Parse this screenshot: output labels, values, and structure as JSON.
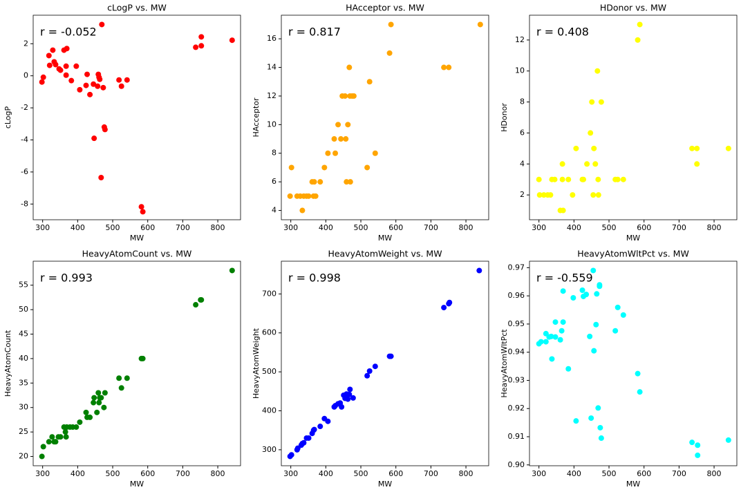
{
  "chart_data": [
    {
      "type": "scatter",
      "title": "cLogP vs. MW",
      "xlabel": "MW",
      "ylabel": "cLogP",
      "annotation": "r = -0.052",
      "color": "#ff0000",
      "xlim": [
        273,
        865
      ],
      "ylim": [
        -8.98,
        3.78
      ],
      "xticks": [
        300,
        400,
        500,
        600,
        700,
        800
      ],
      "yticks": [
        -8,
        -6,
        -4,
        -2,
        0,
        2
      ],
      "x": [
        298,
        302,
        318,
        320,
        329,
        333,
        337,
        347,
        351,
        361,
        369,
        367,
        367,
        382,
        396,
        406,
        424,
        427,
        435,
        445,
        447,
        457,
        459,
        463,
        461,
        467,
        469,
        473,
        476,
        478,
        518,
        525,
        541,
        582,
        586,
        737,
        753,
        753,
        841
      ],
      "y": [
        -0.39,
        -0.09,
        1.26,
        0.65,
        1.6,
        0.87,
        0.7,
        0.43,
        0.35,
        1.6,
        1.7,
        0.6,
        0.04,
        -0.3,
        0.6,
        -0.87,
        -0.6,
        0.09,
        -1.17,
        -0.52,
        -3.9,
        -0.65,
        0.09,
        -0.22,
        -0.09,
        -6.35,
        3.2,
        -0.74,
        -3.2,
        -3.35,
        -0.26,
        -0.65,
        -0.26,
        -8.17,
        -8.48,
        1.78,
        2.43,
        1.87,
        2.22
      ]
    },
    {
      "type": "scatter",
      "title": "HAcceptor vs. MW",
      "xlabel": "MW",
      "ylabel": "HAcceptor",
      "annotation": "r = 0.817",
      "color": "#ffa500",
      "xlim": [
        273,
        865
      ],
      "ylim": [
        3.35,
        17.65
      ],
      "xticks": [
        300,
        400,
        500,
        600,
        700,
        800
      ],
      "yticks": [
        4,
        6,
        8,
        10,
        12,
        14,
        16
      ],
      "x": [
        298,
        318,
        327,
        337,
        345,
        351,
        365,
        371,
        333,
        361,
        367,
        384,
        459,
        470,
        302,
        396,
        518,
        406,
        427,
        541,
        424,
        443,
        457,
        435,
        463,
        447,
        455,
        469,
        475,
        480,
        525,
        467,
        737,
        751,
        582,
        586,
        841
      ],
      "y": [
        5,
        5,
        5,
        5,
        5,
        5,
        5,
        5,
        4,
        6,
        6,
        6,
        6,
        6,
        7,
        7,
        7,
        8,
        8,
        8,
        9,
        9,
        9,
        10,
        10,
        12,
        12,
        12,
        12,
        12,
        13,
        14,
        14,
        14,
        15,
        17,
        17
      ]
    },
    {
      "type": "scatter",
      "title": "HDonor vs. MW",
      "xlabel": "MW",
      "ylabel": "HDonor",
      "annotation": "r = 0.408",
      "color": "#ffff00",
      "xlim": [
        273,
        865
      ],
      "ylim": [
        0.4,
        13.6
      ],
      "xticks": [
        300,
        400,
        500,
        600,
        700,
        800
      ],
      "yticks": [
        2,
        4,
        6,
        8,
        10,
        12
      ],
      "x": [
        300,
        337,
        345,
        367,
        384,
        424,
        427,
        469,
        518,
        525,
        541,
        302,
        314,
        325,
        333,
        396,
        455,
        470,
        361,
        369,
        367,
        437,
        461,
        751,
        406,
        457,
        737,
        751,
        841,
        447,
        451,
        478,
        467,
        582,
        588
      ],
      "y": [
        3,
        3,
        3,
        3,
        3,
        3,
        3,
        3,
        3,
        3,
        3,
        2,
        2,
        2,
        2,
        2,
        2,
        2,
        1,
        1,
        4,
        4,
        4,
        4,
        5,
        5,
        5,
        5,
        5,
        6,
        8,
        8,
        10,
        12,
        13
      ]
    },
    {
      "type": "scatter",
      "title": "HeavyAtomCount vs. MW",
      "xlabel": "MW",
      "ylabel": "HeavyAtomCount",
      "annotation": "r = 0.993",
      "color": "#008000",
      "xlim": [
        273,
        865
      ],
      "ylim": [
        18.1,
        59.9
      ],
      "xticks": [
        300,
        400,
        500,
        600,
        700,
        800
      ],
      "yticks": [
        20,
        25,
        30,
        35,
        40,
        45,
        50,
        55
      ],
      "x": [
        298,
        302,
        318,
        327,
        333,
        337,
        345,
        351,
        361,
        365,
        367,
        369,
        378,
        386,
        396,
        406,
        424,
        427,
        435,
        445,
        447,
        455,
        459,
        461,
        463,
        467,
        475,
        478,
        518,
        525,
        541,
        582,
        586,
        737,
        751,
        753,
        841
      ],
      "y": [
        20,
        22,
        23,
        24,
        23,
        23,
        24,
        24,
        26,
        25,
        24,
        26,
        26,
        26,
        26,
        27,
        29,
        28,
        28,
        31,
        32,
        29,
        33,
        31,
        32,
        32,
        30,
        33,
        36,
        34,
        36,
        40,
        40,
        51,
        52,
        52,
        58
      ]
    },
    {
      "type": "scatter",
      "title": "HeavyAtomWeight vs. MW",
      "xlabel": "MW",
      "ylabel": "HeavyAtomWeight",
      "annotation": "r = 0.998",
      "color": "#0000ff",
      "xlim": [
        273,
        865
      ],
      "ylim": [
        259,
        784
      ],
      "xticks": [
        300,
        400,
        500,
        600,
        700,
        800
      ],
      "yticks": [
        300,
        400,
        500,
        600,
        700
      ],
      "x": [
        298,
        302,
        318,
        320,
        330,
        333,
        337,
        345,
        351,
        361,
        365,
        367,
        384,
        396,
        406,
        424,
        427,
        435,
        441,
        445,
        451,
        455,
        459,
        463,
        467,
        469,
        478,
        518,
        525,
        541,
        582,
        586,
        737,
        751,
        753,
        838
      ],
      "y": [
        283,
        287,
        300,
        304,
        312,
        316,
        318,
        330,
        330,
        342,
        350,
        352,
        360,
        380,
        373,
        410,
        413,
        418,
        420,
        410,
        440,
        432,
        443,
        430,
        442,
        455,
        433,
        490,
        502,
        514,
        540,
        540,
        665,
        675,
        678,
        760
      ]
    },
    {
      "type": "scatter",
      "title": "HeavyAtomWltPct vs. MW",
      "xlabel": "MW",
      "ylabel": "HeavyAtomWltPct",
      "annotation": "r = -0.559",
      "color": "#00ffff",
      "xlim": [
        273,
        865
      ],
      "ylim": [
        0.8997,
        0.9723
      ],
      "xticks": [
        300,
        400,
        500,
        600,
        700,
        800
      ],
      "yticks": [
        {
          "value": 0.9,
          "label": "0.90"
        },
        0.91,
        0.92,
        0.93,
        0.94,
        0.95,
        0.96,
        0.97
      ],
      "x": [
        300,
        306,
        320,
        320,
        329,
        337,
        335,
        347,
        347,
        361,
        365,
        369,
        369,
        384,
        398,
        406,
        424,
        427,
        435,
        445,
        449,
        455,
        457,
        463,
        465,
        469,
        473,
        473,
        475,
        478,
        518,
        525,
        541,
        582,
        588,
        737,
        753,
        753,
        841
      ],
      "y": [
        0.943,
        0.9437,
        0.9466,
        0.9437,
        0.9454,
        0.9376,
        0.9456,
        0.9507,
        0.9454,
        0.9444,
        0.9476,
        0.9617,
        0.9507,
        0.9341,
        0.9593,
        0.9156,
        0.962,
        0.9598,
        0.9605,
        0.9456,
        0.9166,
        0.969,
        0.9405,
        0.9498,
        0.9607,
        0.9202,
        0.9639,
        0.9634,
        0.9132,
        0.9095,
        0.9476,
        0.9559,
        0.9532,
        0.9324,
        0.9259,
        0.908,
        0.907,
        0.9034,
        0.9088
      ]
    }
  ]
}
